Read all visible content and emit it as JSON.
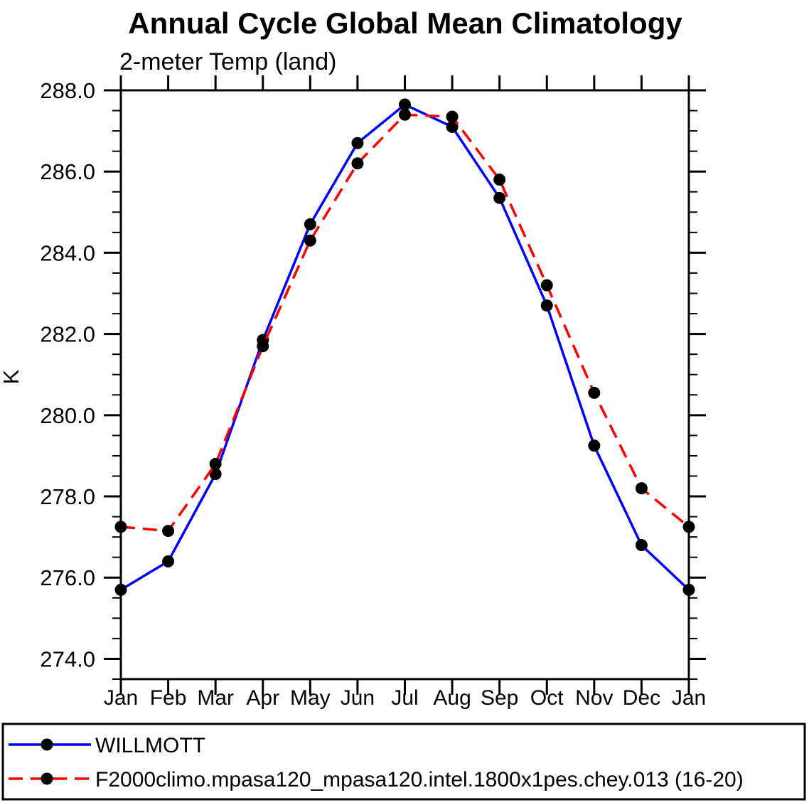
{
  "page": {
    "background": "#ffffff",
    "axis_color": "#000000",
    "text_color": "#000000"
  },
  "chart_data": {
    "type": "line",
    "title": "Annual Cycle Global Mean Climatology",
    "subtitle": "2-meter Temp (land)",
    "xlabel": "",
    "ylabel": "K",
    "categories": [
      "Jan",
      "Feb",
      "Mar",
      "Apr",
      "May",
      "Jun",
      "Jul",
      "Aug",
      "Sep",
      "Oct",
      "Nov",
      "Dec",
      "Jan"
    ],
    "ylim": [
      273.5,
      288.0
    ],
    "ytick_major_values": [
      274.0,
      276.0,
      278.0,
      280.0,
      282.0,
      284.0,
      286.0,
      288.0
    ],
    "ytick_major_labels": [
      "274.0",
      "276.0",
      "278.0",
      "280.0",
      "282.0",
      "284.0",
      "286.0",
      "288.0"
    ],
    "ytick_minor_step": 0.5,
    "grid": false,
    "legend_position": "bottom",
    "series": [
      {
        "name": "WILLMOTT",
        "color": "#0000ff",
        "line_style": "solid",
        "marker": "circle",
        "marker_color": "#000000",
        "values": [
          275.7,
          276.4,
          278.55,
          281.85,
          284.7,
          286.7,
          287.65,
          287.1,
          285.35,
          282.7,
          279.25,
          276.8,
          275.7
        ]
      },
      {
        "name": "F2000climo.mpasa120_mpasa120.intel.1800x1pes.chey.013 (16-20)",
        "color": "#ff0000",
        "line_style": "dashed",
        "marker": "circle",
        "marker_color": "#000000",
        "values": [
          277.25,
          277.15,
          278.8,
          281.7,
          284.3,
          286.2,
          287.4,
          287.35,
          285.8,
          283.2,
          280.55,
          278.2,
          277.25
        ]
      }
    ]
  }
}
